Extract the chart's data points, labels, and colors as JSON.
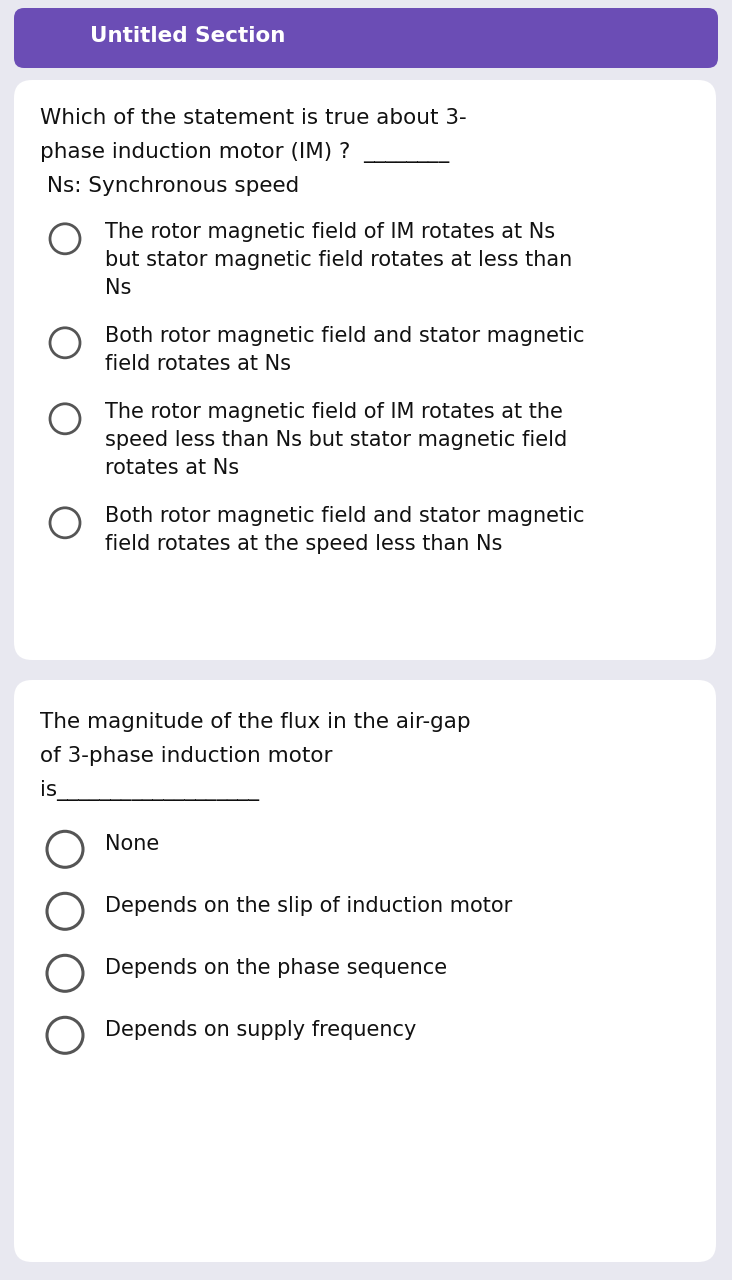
{
  "bg_color": "#e8e8f0",
  "header_bg": "#6b4db5",
  "header_text": "Untitled Section",
  "header_text_color": "#ffffff",
  "card_bg": "#ffffff",
  "q1_question_lines": [
    "Which of the statement is true about 3-",
    "phase induction motor (IM) ?  ________",
    " Ns: Synchronous speed"
  ],
  "q1_options": [
    [
      "The rotor magnetic field of IM rotates at Ns",
      "but stator magnetic field rotates at less than",
      "Ns"
    ],
    [
      "Both rotor magnetic field and stator magnetic",
      "field rotates at Ns"
    ],
    [
      "The rotor magnetic field of IM rotates at the",
      "speed less than Ns but stator magnetic field",
      "rotates at Ns"
    ],
    [
      "Both rotor magnetic field and stator magnetic",
      "field rotates at the speed less than Ns"
    ]
  ],
  "q2_question_lines": [
    "The magnitude of the flux in the air-gap",
    "of 3-phase induction motor",
    "is___________________"
  ],
  "q2_options": [
    [
      "None"
    ],
    [
      "Depends on the slip of induction motor"
    ],
    [
      "Depends on the phase sequence"
    ],
    [
      "Depends on supply frequency"
    ]
  ],
  "question_fontsize": 15.5,
  "option_fontsize": 15.0,
  "header_fontsize": 15.5,
  "circle_color": "#555555",
  "text_color": "#111111",
  "fig_w": 7.32,
  "fig_h": 12.8,
  "dpi": 100
}
